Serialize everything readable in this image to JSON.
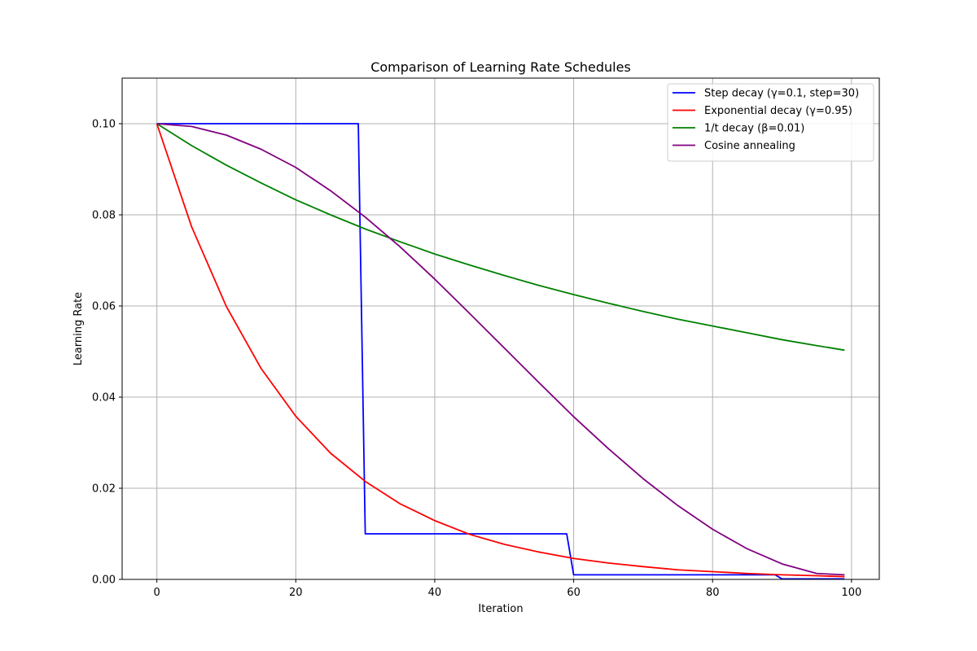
{
  "chart_data": {
    "type": "line",
    "title": "Comparison of Learning Rate Schedules",
    "xlabel": "Iteration",
    "ylabel": "Learning Rate",
    "xlim": [
      -5,
      104
    ],
    "ylim": [
      0,
      0.11
    ],
    "xticks": [
      0,
      20,
      40,
      60,
      80,
      100
    ],
    "yticks": [
      0.0,
      0.02,
      0.04,
      0.06,
      0.08,
      0.1
    ],
    "xtick_labels": [
      "0",
      "20",
      "40",
      "60",
      "80",
      "100"
    ],
    "ytick_labels": [
      "0.00",
      "0.02",
      "0.04",
      "0.06",
      "0.08",
      "0.10"
    ],
    "grid": true,
    "legend_position": "top-right",
    "series": [
      {
        "name": "Step decay (γ=0.1, step=30)",
        "color": "#0000ff",
        "x": [
          0,
          29,
          30,
          59,
          60,
          89,
          90,
          99
        ],
        "y": [
          0.1,
          0.1,
          0.01,
          0.01,
          0.001,
          0.001,
          0.0001,
          0.0001
        ]
      },
      {
        "name": "Exponential decay (γ=0.95)",
        "color": "#ff0000",
        "x": [
          0,
          5,
          10,
          15,
          20,
          25,
          30,
          35,
          40,
          45,
          50,
          55,
          60,
          65,
          70,
          75,
          80,
          85,
          90,
          95,
          99
        ],
        "y": [
          0.1,
          0.0774,
          0.0599,
          0.0463,
          0.0358,
          0.0277,
          0.0215,
          0.0166,
          0.0129,
          0.0099,
          0.0077,
          0.006,
          0.0046,
          0.0036,
          0.0028,
          0.0021,
          0.0017,
          0.0013,
          0.001,
          0.0008,
          0.0006
        ]
      },
      {
        "name": "1/t decay (β=0.01)",
        "color": "#008000",
        "x": [
          0,
          5,
          10,
          15,
          20,
          25,
          30,
          35,
          40,
          45,
          50,
          55,
          60,
          65,
          70,
          75,
          80,
          85,
          90,
          95,
          99
        ],
        "y": [
          0.1,
          0.0952,
          0.0909,
          0.087,
          0.0833,
          0.08,
          0.0769,
          0.0741,
          0.0714,
          0.069,
          0.0667,
          0.0645,
          0.0625,
          0.0606,
          0.0588,
          0.0571,
          0.0556,
          0.0541,
          0.0526,
          0.0513,
          0.0503
        ]
      },
      {
        "name": "Cosine annealing",
        "color": "#800080",
        "x": [
          0,
          5,
          10,
          15,
          20,
          25,
          30,
          35,
          40,
          45,
          50,
          55,
          60,
          65,
          70,
          75,
          80,
          85,
          90,
          95,
          99
        ],
        "y": [
          0.1,
          0.0994,
          0.0975,
          0.0944,
          0.0904,
          0.0853,
          0.0795,
          0.073,
          0.0659,
          0.0584,
          0.0508,
          0.0432,
          0.0357,
          0.0287,
          0.0221,
          0.0162,
          0.011,
          0.0067,
          0.0034,
          0.0013,
          0.001
        ]
      }
    ]
  }
}
